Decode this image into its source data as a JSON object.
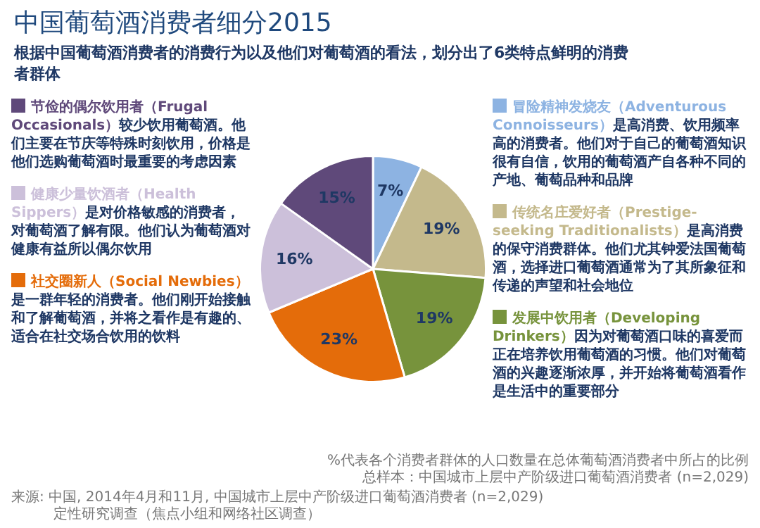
{
  "chart_data": {
    "type": "pie",
    "title": "中国葡萄酒消费者细分2015",
    "subtitle": "根据中国葡萄酒消费者的消费行为以及他们对葡萄酒的看法，划分出了6类特点鲜明的消费者群体",
    "categories": [
      "冒险精神发烧友（Adventurous Connoisseurs）",
      "传统名庄爱好者（Prestige-seeking Traditionalists）",
      "发展中饮用者（Developing Drinkers）",
      "社交圈新人（Social Newbies）",
      "健康少量饮酒者（Health Sippers）",
      "节俭的偶尔饮用者（Frugal Occasionals）"
    ],
    "values": [
      7,
      19,
      19,
      23,
      16,
      15
    ],
    "legend": "left",
    "value_labels": [
      "7%",
      "19%",
      "19%",
      "23%",
      "16%",
      "15%"
    ],
    "colors": [
      "#8db3e2",
      "#c4b98c",
      "#77933c",
      "#e46c0a",
      "#ccc0da",
      "#5f497a"
    ],
    "annotations": [
      "是高消费、饮用频率高的消费者。他们对于自己的葡萄酒知识很有自信，饮用的葡萄酒产自各种不同的产地、葡萄品种和品牌",
      "是高消费的保守消费群体。他们尤其钟爱法国葡萄酒，选择进口葡萄酒通常为了其所象征和传递的声望和社会地位",
      "因为对葡萄酒口味的喜爱而正在培养饮用葡萄酒的习惯。他们对葡萄酒的兴趣逐渐浓厚，并开始将葡萄酒看作是生活中的重要部分",
      "是一群年轻的消费者。他们刚开始接触和了解葡萄酒，并将之看作是有趣的、适合在社交场合饮用的饮料",
      "是对价格敏感的消费者，对葡萄酒了解有限。他们认为葡萄酒对健康有益所以偶尔饮用",
      "较少饮用葡萄酒。他们主要在节庆等特殊时刻饮用，价格是他们选购葡萄酒时最重要的考虑因素",
      "%代表各个消费者群体的人口数量在总体葡萄酒消费者中所占的比例",
      "总样本：中国城市上层中产阶级进口葡萄酒消费者 (n=2,029)",
      "来源: 中国, 2014年4月和11月, 中国城市上层中产阶级进口葡萄酒消费者 (n=2,029)",
      "定性研究调查（焦点小组和网络社区调查）"
    ]
  }
}
